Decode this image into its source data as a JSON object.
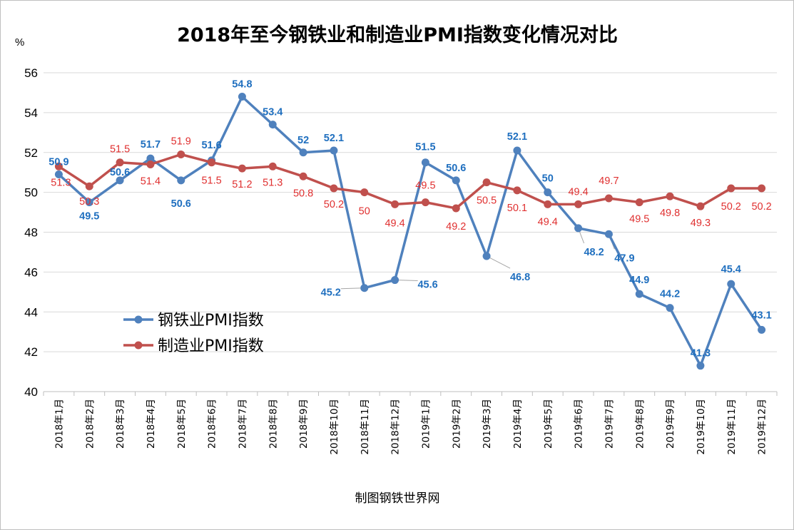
{
  "chart_data": {
    "type": "line",
    "title": "2018年至今钢铁业和制造业PMI指数变化情况对比",
    "unit_label": "%",
    "source": "制图钢铁世界网",
    "ylim": [
      40,
      56
    ],
    "yticks": [
      "40",
      "42",
      "44",
      "46",
      "48",
      "50",
      "52",
      "54",
      "56"
    ],
    "grid": "horizontal",
    "legend_position": "lower-left",
    "categories": [
      "2018年1月",
      "2018年2月",
      "2018年3月",
      "2018年4月",
      "2018年5月",
      "2018年6月",
      "2018年7月",
      "2018年8月",
      "2018年9月",
      "2018年10月",
      "2018年11月",
      "2018年12月",
      "2019年1月",
      "2019年2月",
      "2019年3月",
      "2019年4月",
      "2019年5月",
      "2019年6月",
      "2019年7月",
      "2019年8月",
      "2019年9月",
      "2019年10月",
      "2019年11月",
      "2019年12月"
    ],
    "series": [
      {
        "name": "钢铁业PMI指数",
        "color": "#4f81bd",
        "label_color": "#1f6fbf",
        "values": [
          50.9,
          49.5,
          50.6,
          51.7,
          50.6,
          51.6,
          54.8,
          53.4,
          52,
          52.1,
          45.2,
          45.6,
          51.5,
          50.6,
          46.8,
          52.1,
          50,
          48.2,
          47.9,
          44.9,
          44.2,
          41.3,
          45.4,
          43.1
        ],
        "labels": [
          "50.9",
          "49.5",
          "50.6",
          "51.7",
          "50.6",
          "51.6",
          "54.8",
          "53.4",
          "52",
          "52.1",
          "45.2",
          "45.6",
          "51.5",
          "50.6",
          "46.8",
          "52.1",
          "50",
          "48.2",
          "47.9",
          "44.9",
          "44.2",
          "41.3",
          "45.4",
          "43.1"
        ]
      },
      {
        "name": "制造业PMI指数",
        "color": "#c0504d",
        "label_color": "#e03030",
        "values": [
          51.3,
          50.3,
          51.5,
          51.4,
          51.9,
          51.5,
          51.2,
          51.3,
          50.8,
          50.2,
          50,
          49.4,
          49.5,
          49.2,
          50.5,
          50.1,
          49.4,
          49.4,
          49.7,
          49.5,
          49.8,
          49.3,
          50.2,
          50.2
        ],
        "labels": [
          "51.3",
          "50.3",
          "51.5",
          "51.4",
          "51.9",
          "51.5",
          "51.2",
          "51.3",
          "50.8",
          "50.2",
          "50",
          "49.4",
          "49.5",
          "49.2",
          "50.5",
          "50.1",
          "49.4",
          "49.4",
          "49.7",
          "49.5",
          "49.8",
          "49.3",
          "50.2",
          "50.2"
        ]
      }
    ]
  }
}
